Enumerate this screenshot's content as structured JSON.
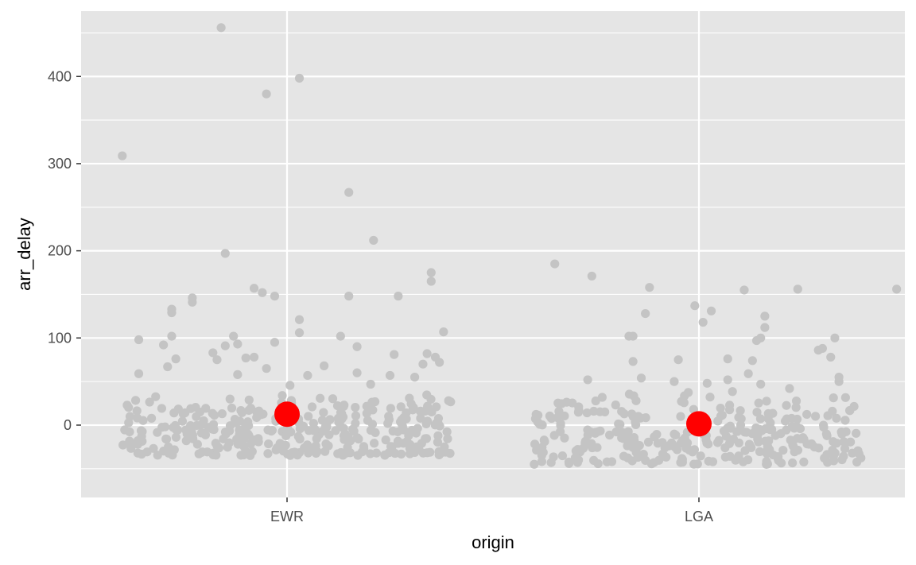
{
  "chart_data": {
    "type": "scatter",
    "subtype": "jitter-with-mean",
    "title": "",
    "xlabel": "origin",
    "ylabel": "arr_delay",
    "categories": [
      "EWR",
      "LGA"
    ],
    "ylim": [
      -83,
      475
    ],
    "yticks": [
      0,
      100,
      200,
      300,
      400
    ],
    "ytick_labels": [
      "0",
      "100",
      "200",
      "300",
      "400"
    ],
    "grid": true,
    "colors": {
      "panel": "#e5e5e5",
      "grid": "#ffffff",
      "points": "#c4c4c4",
      "means": "#ff0000",
      "tick_text": "#4d4d4d"
    },
    "means": [
      {
        "category": "EWR",
        "value": 12.5
      },
      {
        "category": "LGA",
        "value": 1.5
      }
    ],
    "series": [
      {
        "name": "EWR",
        "outliers": [
          {
            "x": -0.4,
            "y": 309
          },
          {
            "x": -0.16,
            "y": 456
          },
          {
            "x": -0.05,
            "y": 380
          },
          {
            "x": 0.03,
            "y": 398
          },
          {
            "x": 0.15,
            "y": 267
          },
          {
            "x": 0.21,
            "y": 212
          },
          {
            "x": -0.15,
            "y": 197
          },
          {
            "x": -0.08,
            "y": 157
          },
          {
            "x": -0.06,
            "y": 152
          },
          {
            "x": -0.03,
            "y": 148
          },
          {
            "x": 0.15,
            "y": 148
          },
          {
            "x": 0.27,
            "y": 148
          },
          {
            "x": 0.35,
            "y": 175
          },
          {
            "x": 0.35,
            "y": 165
          },
          {
            "x": -0.23,
            "y": 146
          },
          {
            "x": -0.23,
            "y": 141
          },
          {
            "x": -0.28,
            "y": 133
          },
          {
            "x": -0.28,
            "y": 129
          },
          {
            "x": 0.03,
            "y": 121
          },
          {
            "x": 0.38,
            "y": 107
          },
          {
            "x": 0.03,
            "y": 106
          },
          {
            "x": 0.13,
            "y": 102
          },
          {
            "x": -0.13,
            "y": 102
          },
          {
            "x": -0.28,
            "y": 102
          },
          {
            "x": -0.36,
            "y": 98
          },
          {
            "x": -0.12,
            "y": 93
          },
          {
            "x": -0.03,
            "y": 95
          },
          {
            "x": 0.17,
            "y": 90
          },
          {
            "x": -0.15,
            "y": 91
          },
          {
            "x": -0.3,
            "y": 92
          },
          {
            "x": -0.18,
            "y": 83
          },
          {
            "x": 0.26,
            "y": 81
          },
          {
            "x": 0.34,
            "y": 82
          },
          {
            "x": -0.27,
            "y": 76
          },
          {
            "x": -0.17,
            "y": 75
          },
          {
            "x": -0.1,
            "y": 77
          },
          {
            "x": -0.08,
            "y": 78
          },
          {
            "x": 0.09,
            "y": 68
          },
          {
            "x": -0.29,
            "y": 67
          },
          {
            "x": -0.05,
            "y": 65
          },
          {
            "x": 0.37,
            "y": 72
          },
          {
            "x": 0.33,
            "y": 70
          },
          {
            "x": 0.36,
            "y": 78
          },
          {
            "x": -0.36,
            "y": 59
          },
          {
            "x": 0.05,
            "y": 57
          },
          {
            "x": 0.17,
            "y": 60
          },
          {
            "x": 0.25,
            "y": 57
          },
          {
            "x": 0.31,
            "y": 55
          },
          {
            "x": -0.12,
            "y": 58
          }
        ],
        "cluster": {
          "count": 330,
          "x_half_width": 0.4,
          "y_min": -35,
          "y_max": 50,
          "y_center": -8,
          "seed": 11
        }
      },
      {
        "name": "LGA",
        "outliers": [
          {
            "x": -0.35,
            "y": 185
          },
          {
            "x": -0.26,
            "y": 171
          },
          {
            "x": -0.12,
            "y": 158
          },
          {
            "x": 0.24,
            "y": 156
          },
          {
            "x": 0.48,
            "y": 156
          },
          {
            "x": 0.11,
            "y": 155
          },
          {
            "x": -0.01,
            "y": 137
          },
          {
            "x": 0.03,
            "y": 131
          },
          {
            "x": -0.13,
            "y": 128
          },
          {
            "x": 0.16,
            "y": 125
          },
          {
            "x": 0.16,
            "y": 112
          },
          {
            "x": 0.01,
            "y": 118
          },
          {
            "x": -0.17,
            "y": 102
          },
          {
            "x": -0.16,
            "y": 102
          },
          {
            "x": 0.33,
            "y": 100
          },
          {
            "x": 0.15,
            "y": 100
          },
          {
            "x": 0.14,
            "y": 97
          },
          {
            "x": 0.29,
            "y": 86
          },
          {
            "x": 0.3,
            "y": 88
          },
          {
            "x": 0.32,
            "y": 78
          },
          {
            "x": -0.05,
            "y": 75
          },
          {
            "x": 0.07,
            "y": 76
          },
          {
            "x": -0.16,
            "y": 73
          },
          {
            "x": 0.13,
            "y": 74
          },
          {
            "x": 0.12,
            "y": 59
          },
          {
            "x": 0.34,
            "y": 55
          },
          {
            "x": -0.27,
            "y": 52
          },
          {
            "x": -0.06,
            "y": 50
          },
          {
            "x": 0.07,
            "y": 52
          },
          {
            "x": 0.02,
            "y": 48
          },
          {
            "x": 0.15,
            "y": 47
          },
          {
            "x": -0.14,
            "y": 54
          },
          {
            "x": 0.34,
            "y": 50
          },
          {
            "x": 0.22,
            "y": 42
          }
        ],
        "cluster": {
          "count": 300,
          "x_half_width": 0.4,
          "y_min": -45,
          "y_max": 40,
          "y_center": -12,
          "seed": 29
        }
      }
    ]
  }
}
